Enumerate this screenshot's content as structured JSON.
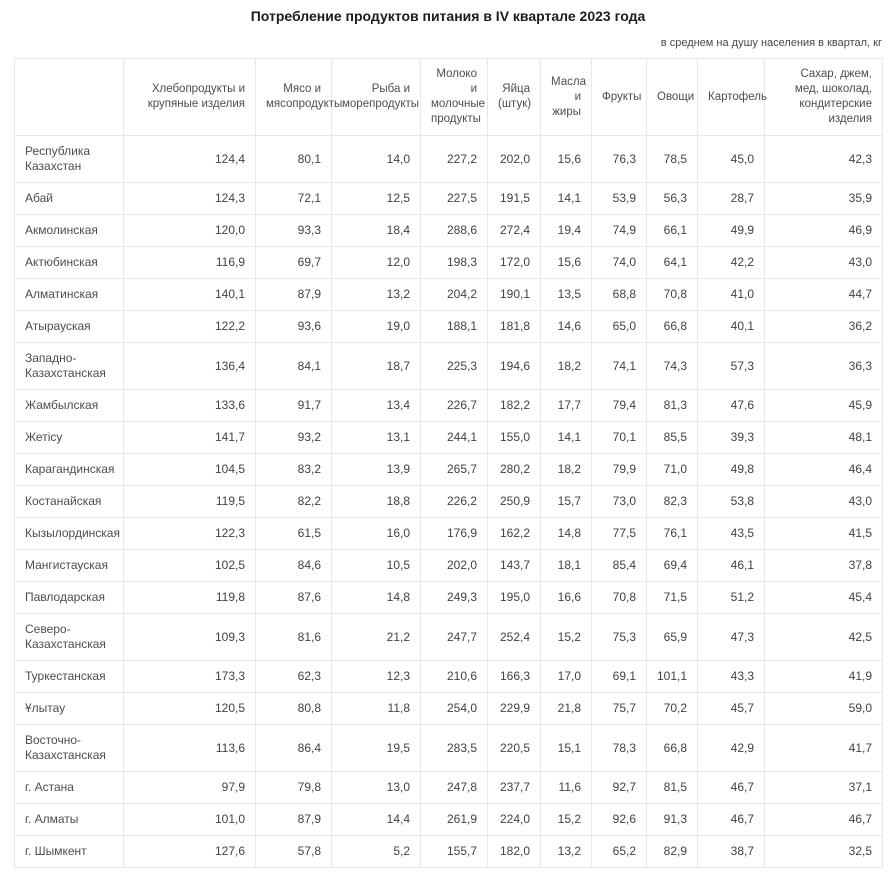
{
  "title": "Потребление продуктов питания в IV квартале 2023 года",
  "subtitle": "в среднем на душу населения в квартал, кг",
  "chart_data": {
    "type": "table",
    "title": "Потребление продуктов питания в IV квартале 2023 года",
    "units_note": "в среднем на душу населения в квартал, кг",
    "columns": [
      "",
      "Хлебопродукты и крупяные изделия",
      "Мясо и мясопродукты",
      "Рыба и морепродукты",
      "Молоко и молочные продукты",
      "Яйца (штук)",
      "Масла и жиры",
      "Фрукты",
      "Овощи",
      "Картофель",
      "Сахар, джем, мед, шоколад, кондитерские изделия"
    ],
    "rows": [
      {
        "region": "Республика Казахстан",
        "values": [
          "124,4",
          "80,1",
          "14,0",
          "227,2",
          "202,0",
          "15,6",
          "76,3",
          "78,5",
          "45,0",
          "42,3"
        ]
      },
      {
        "region": "Абай",
        "values": [
          "124,3",
          "72,1",
          "12,5",
          "227,5",
          "191,5",
          "14,1",
          "53,9",
          "56,3",
          "28,7",
          "35,9"
        ]
      },
      {
        "region": "Акмолинская",
        "values": [
          "120,0",
          "93,3",
          "18,4",
          "288,6",
          "272,4",
          "19,4",
          "74,9",
          "66,1",
          "49,9",
          "46,9"
        ]
      },
      {
        "region": "Актюбинская",
        "values": [
          "116,9",
          "69,7",
          "12,0",
          "198,3",
          "172,0",
          "15,6",
          "74,0",
          "64,1",
          "42,2",
          "43,0"
        ]
      },
      {
        "region": "Алматинская",
        "values": [
          "140,1",
          "87,9",
          "13,2",
          "204,2",
          "190,1",
          "13,5",
          "68,8",
          "70,8",
          "41,0",
          "44,7"
        ]
      },
      {
        "region": "Атырауская",
        "values": [
          "122,2",
          "93,6",
          "19,0",
          "188,1",
          "181,8",
          "14,6",
          "65,0",
          "66,8",
          "40,1",
          "36,2"
        ]
      },
      {
        "region": "Западно-Казахстанская",
        "values": [
          "136,4",
          "84,1",
          "18,7",
          "225,3",
          "194,6",
          "18,2",
          "74,1",
          "74,3",
          "57,3",
          "36,3"
        ]
      },
      {
        "region": "Жамбылская",
        "values": [
          "133,6",
          "91,7",
          "13,4",
          "226,7",
          "182,2",
          "17,7",
          "79,4",
          "81,3",
          "47,6",
          "45,9"
        ]
      },
      {
        "region": "Жетісу",
        "values": [
          "141,7",
          "93,2",
          "13,1",
          "244,1",
          "155,0",
          "14,1",
          "70,1",
          "85,5",
          "39,3",
          "48,1"
        ]
      },
      {
        "region": "Карагандинская",
        "values": [
          "104,5",
          "83,2",
          "13,9",
          "265,7",
          "280,2",
          "18,2",
          "79,9",
          "71,0",
          "49,8",
          "46,4"
        ]
      },
      {
        "region": "Костанайская",
        "values": [
          "119,5",
          "82,2",
          "18,8",
          "226,2",
          "250,9",
          "15,7",
          "73,0",
          "82,3",
          "53,8",
          "43,0"
        ]
      },
      {
        "region": "Кызылординская",
        "values": [
          "122,3",
          "61,5",
          "16,0",
          "176,9",
          "162,2",
          "14,8",
          "77,5",
          "76,1",
          "43,5",
          "41,5"
        ]
      },
      {
        "region": "Мангистауская",
        "values": [
          "102,5",
          "84,6",
          "10,5",
          "202,0",
          "143,7",
          "18,1",
          "85,4",
          "69,4",
          "46,1",
          "37,8"
        ]
      },
      {
        "region": "Павлодарская",
        "values": [
          "119,8",
          "87,6",
          "14,8",
          "249,3",
          "195,0",
          "16,6",
          "70,8",
          "71,5",
          "51,2",
          "45,4"
        ]
      },
      {
        "region": "Северо-Казахстанская",
        "values": [
          "109,3",
          "81,6",
          "21,2",
          "247,7",
          "252,4",
          "15,2",
          "75,3",
          "65,9",
          "47,3",
          "42,5"
        ]
      },
      {
        "region": "Туркестанская",
        "values": [
          "173,3",
          "62,3",
          "12,3",
          "210,6",
          "166,3",
          "17,0",
          "69,1",
          "101,1",
          "43,3",
          "41,9"
        ]
      },
      {
        "region": "Ұлытау",
        "values": [
          "120,5",
          "80,8",
          "11,8",
          "254,0",
          "229,9",
          "21,8",
          "75,7",
          "70,2",
          "45,7",
          "59,0"
        ]
      },
      {
        "region": "Восточно-Казахстанская",
        "values": [
          "113,6",
          "86,4",
          "19,5",
          "283,5",
          "220,5",
          "15,1",
          "78,3",
          "66,8",
          "42,9",
          "41,7"
        ]
      },
      {
        "region": "г. Астана",
        "values": [
          "97,9",
          "79,8",
          "13,0",
          "247,8",
          "237,7",
          "11,6",
          "92,7",
          "81,5",
          "46,7",
          "37,1"
        ]
      },
      {
        "region": "г. Алматы",
        "values": [
          "101,0",
          "87,9",
          "14,4",
          "261,9",
          "224,0",
          "15,2",
          "92,6",
          "91,3",
          "46,7",
          "46,7"
        ]
      },
      {
        "region": "г. Шымкент",
        "values": [
          "127,6",
          "57,8",
          "5,2",
          "155,7",
          "182,0",
          "13,2",
          "65,2",
          "82,9",
          "38,7",
          "32,5"
        ]
      }
    ]
  }
}
